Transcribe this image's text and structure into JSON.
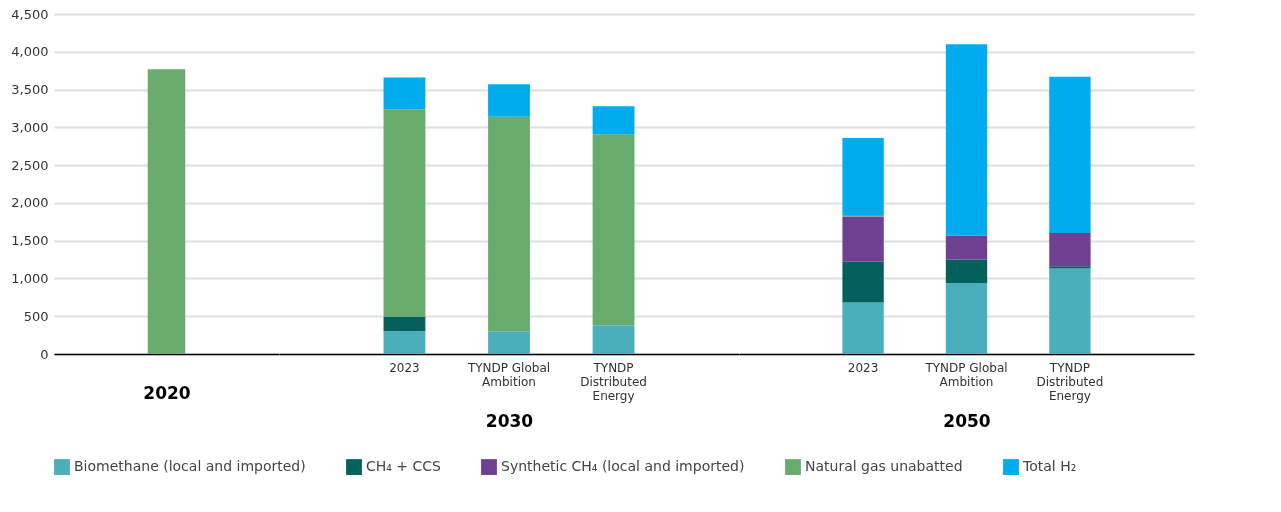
{
  "chart_data": [
    {
      "type": "bar",
      "stacked": true,
      "xlabel": "2020",
      "categories": [
        null
      ],
      "ylim": [
        0,
        4500
      ],
      "yticks": [
        0,
        500,
        {
          "value": 1000,
          "label": "1,000"
        },
        {
          "value": 1500,
          "label": "1,500"
        },
        {
          "value": 2000,
          "label": "2,000"
        },
        {
          "value": 2500,
          "label": "2,500"
        },
        {
          "value": 3000,
          "label": "3,000"
        },
        {
          "value": 3500,
          "label": "3,500"
        },
        {
          "value": 4000,
          "label": "4,000"
        },
        {
          "value": 4500,
          "label": "4,500"
        }
      ],
      "grid": "y",
      "legend": "bottom",
      "series": [
        {
          "name": "Biomethane (local and imported)",
          "color": "#4bafbb",
          "values": [
            0
          ]
        },
        {
          "name": "CH₄ + CCS",
          "color": "#03605c",
          "values": [
            0
          ]
        },
        {
          "name": "Synthetic CH₄ (local and imported)",
          "color": "#6f3f91",
          "values": [
            0
          ]
        },
        {
          "name": "Natural gas unabatted",
          "color": "#67ac6c",
          "values": [
            3770
          ]
        },
        {
          "name": "Total H₂",
          "color": "#00acee",
          "values": [
            0
          ]
        }
      ]
    },
    {
      "type": "bar",
      "stacked": true,
      "xlabel": "2030",
      "categories": [
        "2023",
        "TYNDP Global Ambition",
        "TYNDP Distributed Energy"
      ],
      "ylim": [
        0,
        4500
      ],
      "yticks": [
        0,
        500,
        1000,
        1500,
        2000,
        2500,
        3000,
        3500,
        4000,
        4500
      ],
      "grid": "y",
      "tick_labels": "x",
      "series": [
        {
          "color": "#4bafbb",
          "values": [
            300,
            300,
            380
          ]
        },
        {
          "color": "#03605c",
          "values": [
            190,
            0,
            0
          ]
        },
        {
          "color": "#6f3f91",
          "values": [
            0,
            0,
            0
          ]
        },
        {
          "color": "#67ac6c",
          "values": [
            2750,
            2840,
            2530
          ]
        },
        {
          "color": "#00acee",
          "values": [
            420,
            430,
            370
          ]
        }
      ]
    },
    {
      "type": "bar",
      "stacked": true,
      "xlabel": "2050",
      "categories": [
        "2023",
        "TYNDP Global Ambition",
        "TYNDP Distributed Energy"
      ],
      "ylim": [
        0,
        4500
      ],
      "yticks": [
        0,
        500,
        1000,
        1500,
        2000,
        2500,
        3000,
        3500,
        4000,
        4500
      ],
      "grid": "y",
      "tick_labels": "x",
      "series": [
        {
          "color": "#4bafbb",
          "values": [
            680,
            940,
            1130
          ]
        },
        {
          "color": "#03605c",
          "values": [
            540,
            310,
            30
          ]
        },
        {
          "color": "#6f3f91",
          "values": [
            600,
            320,
            440
          ]
        },
        {
          "color": "#67ac6c",
          "values": [
            20,
            0,
            0
          ]
        },
        {
          "color": "#00acee",
          "values": [
            1020,
            2530,
            2070
          ]
        }
      ]
    }
  ]
}
